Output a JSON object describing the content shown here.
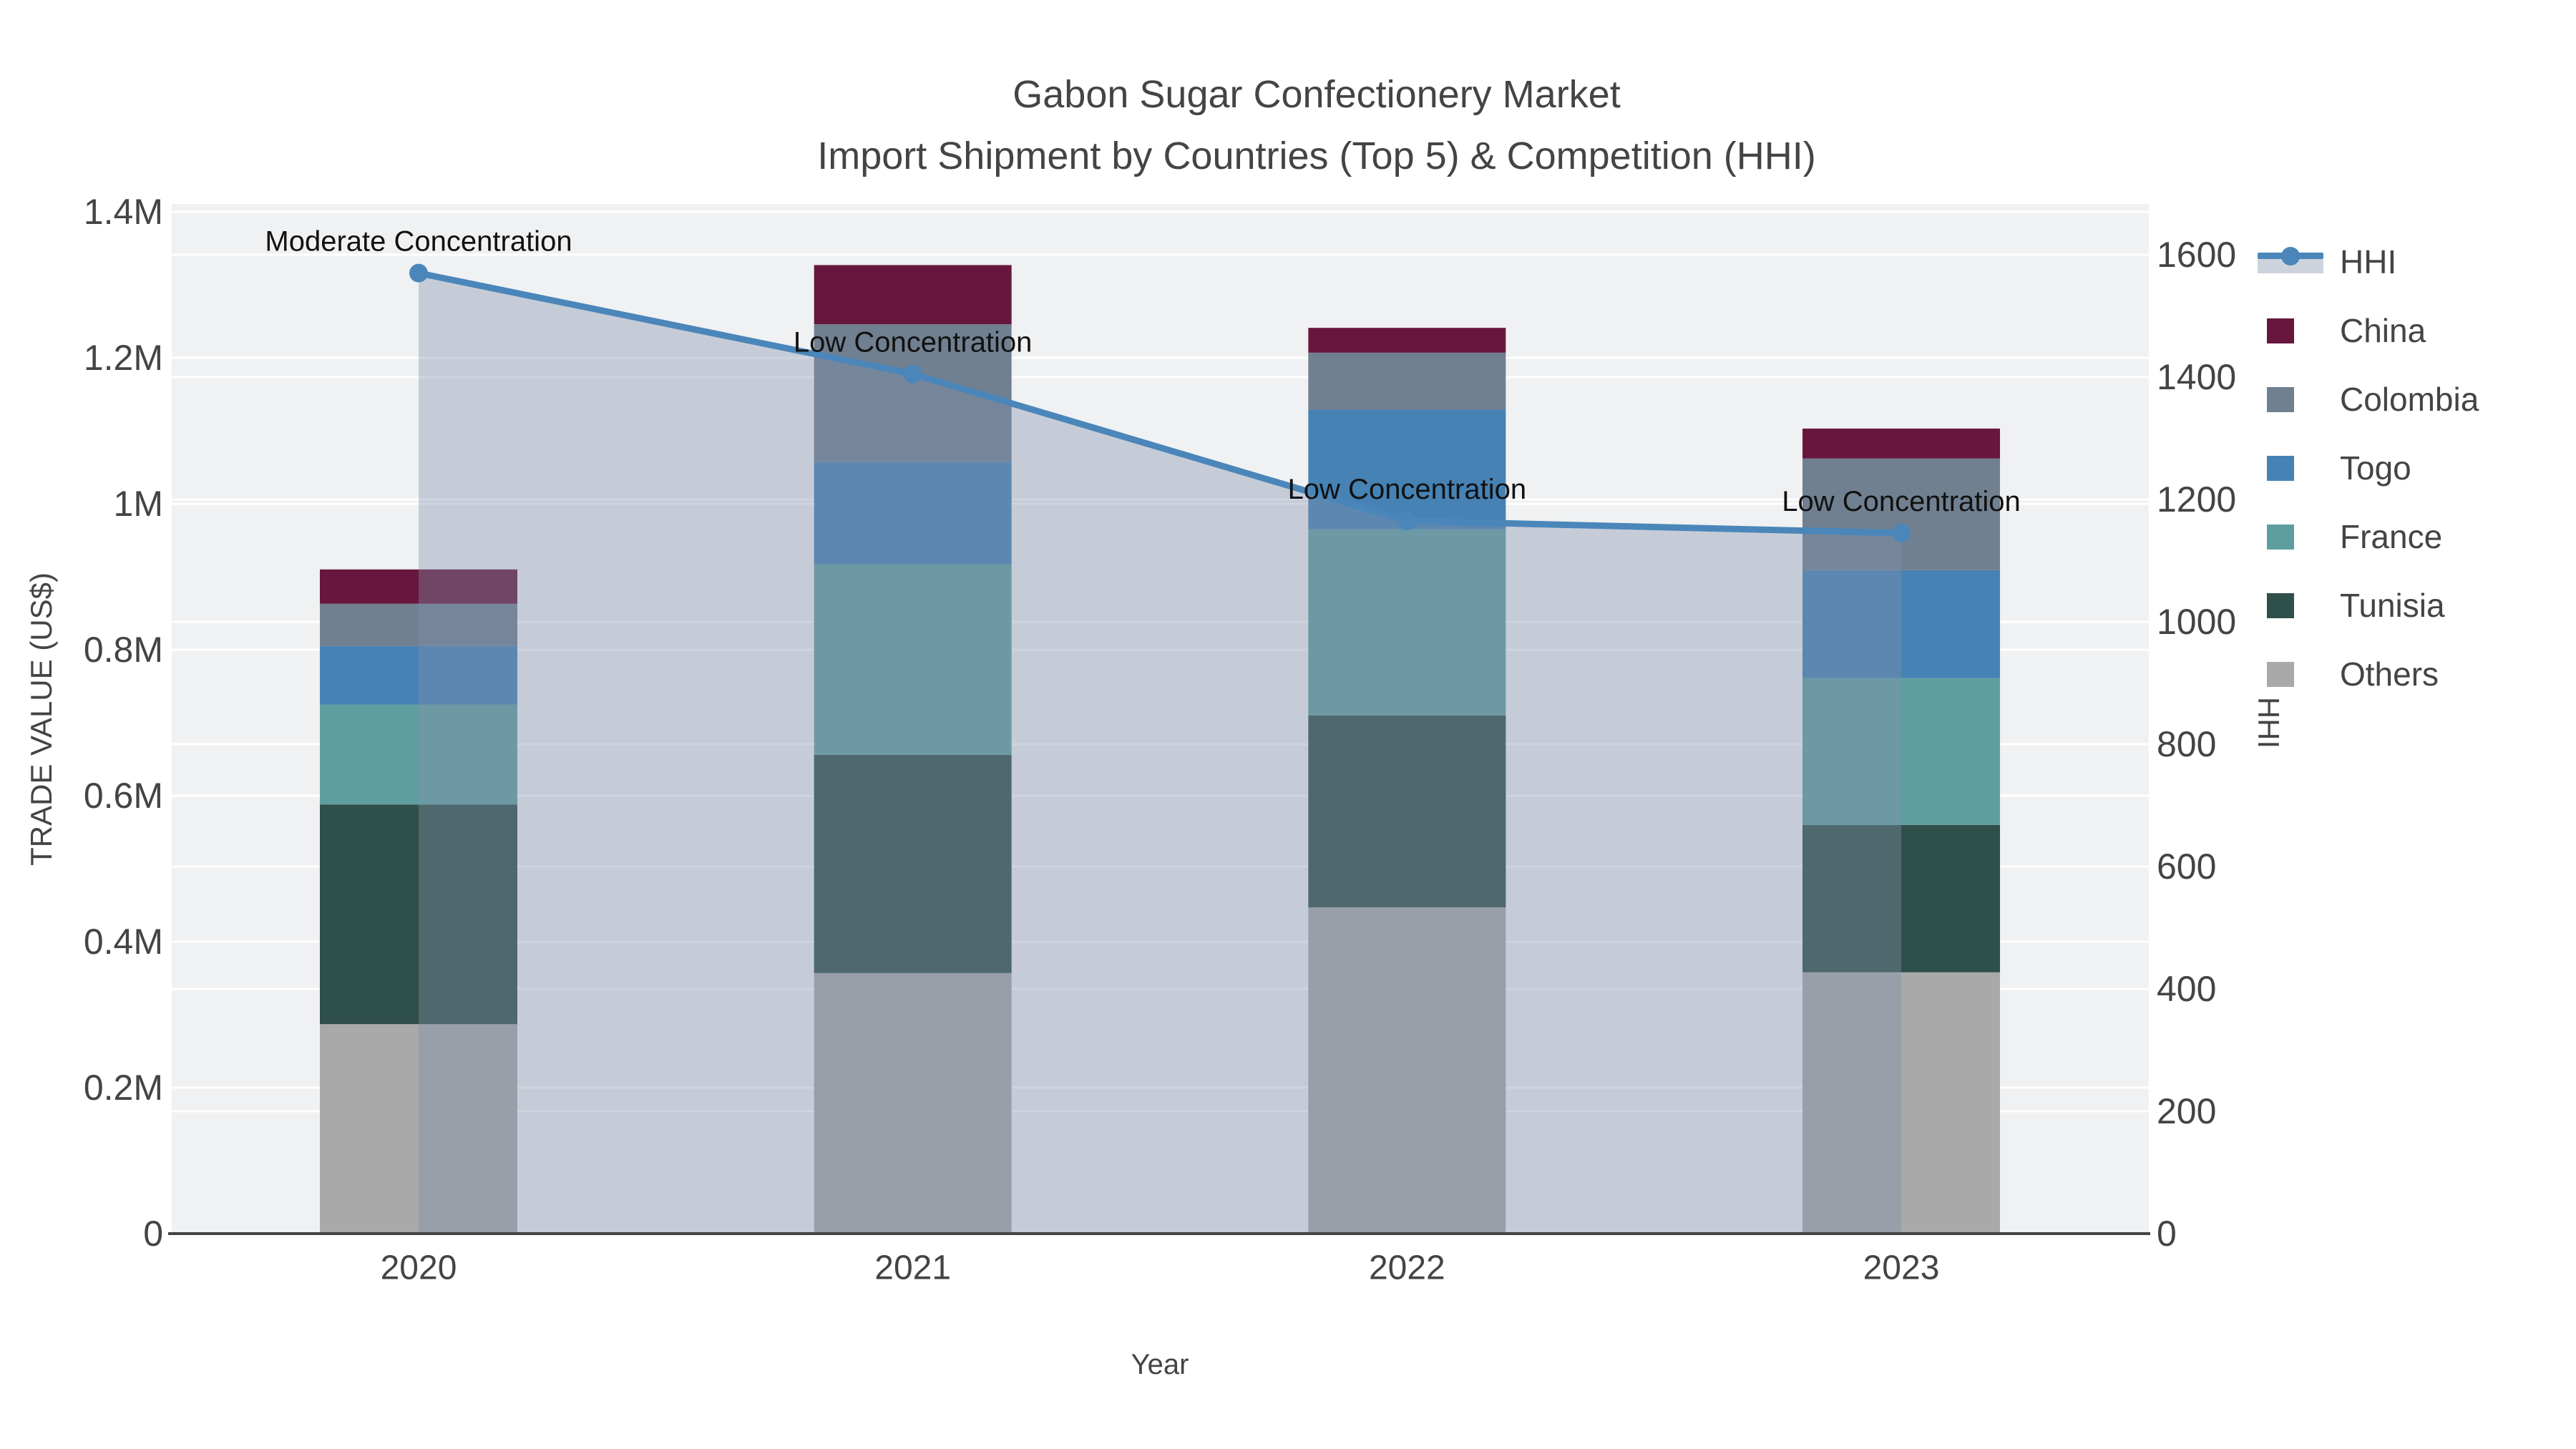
{
  "title": {
    "line1": "Gabon Sugar Confectionery Market",
    "line2": "Import Shipment by Countries (Top 5) & Competition (HHI)"
  },
  "axes": {
    "x_title": "Year",
    "y_left_title": "TRADE VALUE (US$)",
    "y_right_title": "HHI",
    "x_tick_labels": [
      "2020",
      "2021",
      "2022",
      "2023"
    ],
    "y_left_tick_labels": [
      "0",
      "0.2M",
      "0.4M",
      "0.6M",
      "0.8M",
      "1M",
      "1.2M",
      "1.4M"
    ],
    "y_right_tick_labels": [
      "0",
      "200",
      "400",
      "600",
      "800",
      "1000",
      "1200",
      "1400",
      "1600"
    ],
    "y_left_max_label": "1.4M",
    "y_right_max_label": "1600"
  },
  "chart_data": {
    "type": "bar",
    "subtype": "stacked-bars-with-line-overlay-and-area-fill",
    "categories": [
      "2020",
      "2021",
      "2022",
      "2023"
    ],
    "series": [
      {
        "name": "Others",
        "color": "#A9A9A9",
        "values": [
          287000,
          357000,
          447000,
          358000
        ]
      },
      {
        "name": "Tunisia",
        "color": "#2F4F4A",
        "values": [
          301000,
          299000,
          263000,
          202000
        ]
      },
      {
        "name": "France",
        "color": "#5F9EA0",
        "values": [
          137000,
          261000,
          255000,
          201000
        ]
      },
      {
        "name": "Togo",
        "color": "#4682B4",
        "values": [
          80000,
          140000,
          164000,
          148000
        ]
      },
      {
        "name": "Colombia",
        "color": "#708090",
        "values": [
          58000,
          189000,
          78000,
          153000
        ]
      },
      {
        "name": "China",
        "color": "#67173D",
        "values": [
          47000,
          81000,
          34000,
          41000
        ]
      }
    ],
    "bar_totals": [
      910000,
      1327000,
      1241000,
      1103000
    ],
    "line": {
      "name": "HHI",
      "color": "#4A86BA",
      "fill_color": "rgba(130,145,170,0.38)",
      "values": [
        1570,
        1405,
        1165,
        1145
      ]
    },
    "annotations": [
      "Moderate Concentration",
      "Low Concentration",
      "Low Concentration",
      "Low Concentration"
    ],
    "xlabel": "Year",
    "ylabel_left": "TRADE VALUE (US$)",
    "ylabel_right": "HHI",
    "ylim_left": [
      0,
      1411000
    ],
    "ylim_right": [
      0,
      1683
    ],
    "grid": true,
    "legend_position": "right"
  },
  "legend": {
    "items": [
      {
        "label": "HHI",
        "type": "line",
        "color": "#4A86BA",
        "band_color": "#CCD3DC"
      },
      {
        "label": "China",
        "type": "swatch",
        "color": "#67173D"
      },
      {
        "label": "Colombia",
        "type": "swatch",
        "color": "#708090"
      },
      {
        "label": "Togo",
        "type": "swatch",
        "color": "#4682B4"
      },
      {
        "label": "France",
        "type": "swatch",
        "color": "#5F9EA0"
      },
      {
        "label": "Tunisia",
        "type": "swatch",
        "color": "#2F4F4A"
      },
      {
        "label": "Others",
        "type": "swatch",
        "color": "#A9A9A9"
      }
    ]
  },
  "style_colors": {
    "plot_background": "#F0F1F2",
    "gridline": "#FFFFFF",
    "axis_line": "#444444",
    "tick_text": "#444444",
    "title_text": "#444444",
    "annotation_text": "#111111"
  }
}
